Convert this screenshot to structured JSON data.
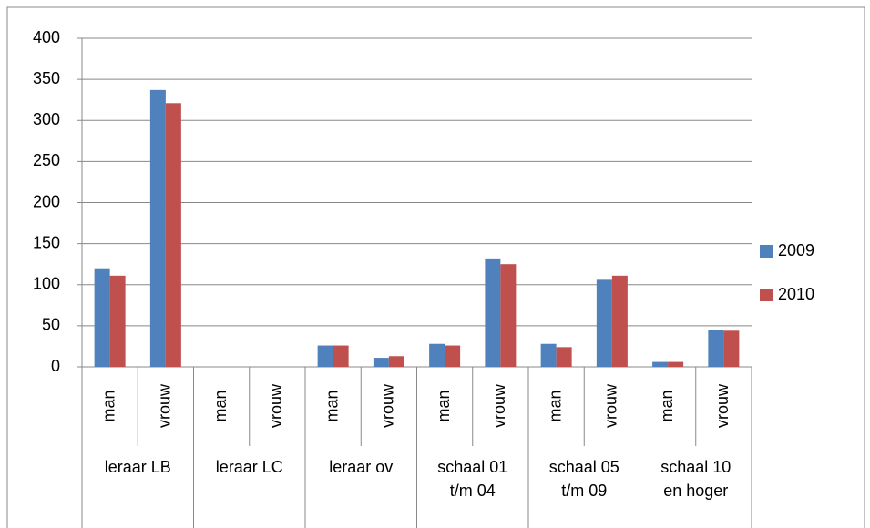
{
  "chart_data": {
    "type": "bar",
    "categories": [
      "man",
      "vrouw",
      "man",
      "vrouw",
      "man",
      "vrouw",
      "man",
      "vrouw",
      "man",
      "vrouw",
      "man",
      "vrouw"
    ],
    "groups": [
      "leraar LB",
      "leraar LC",
      "leraar ov",
      "schaal 01 t/m 04",
      "schaal 05 t/m 09",
      "schaal 10 en hoger"
    ],
    "series": [
      {
        "name": "2009",
        "color": "#4f81bd",
        "values": [
          120,
          337,
          0,
          0,
          26,
          11,
          28,
          132,
          28,
          106,
          6,
          45
        ]
      },
      {
        "name": "2010",
        "color": "#c0504d",
        "values": [
          111,
          321,
          0,
          0,
          26,
          13,
          26,
          125,
          24,
          111,
          6,
          44
        ]
      }
    ],
    "ylim": [
      0,
      400
    ],
    "yticks": [
      0,
      50,
      100,
      150,
      200,
      250,
      300,
      350,
      400
    ],
    "grid": true,
    "legend": "right"
  }
}
